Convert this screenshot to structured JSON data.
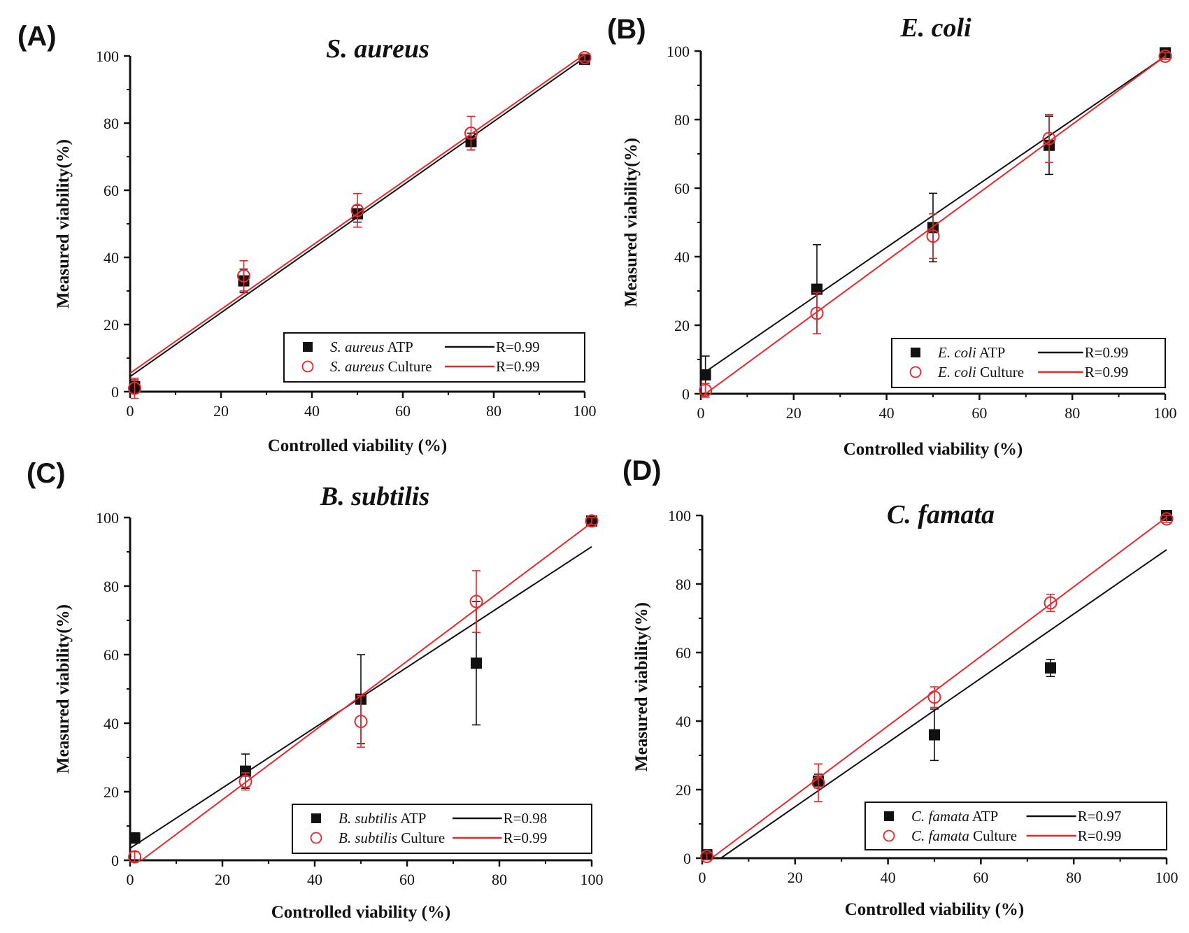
{
  "figure": {
    "colors": {
      "atp": "#111111",
      "culture": "#e8282b",
      "axis": "#111111"
    },
    "legend_style": {
      "atp_marker": "filled-square",
      "culture_marker": "open-circle"
    },
    "chart_data": [
      {
        "type": "scatter",
        "panel_label": "(A)",
        "title": "S. aureus",
        "xlabel": "Controlled viability (%)",
        "ylabel": "Measured viability(%)",
        "xlim": [
          0,
          100
        ],
        "ylim": [
          0,
          100
        ],
        "xticks": [
          0,
          20,
          40,
          60,
          80,
          100
        ],
        "yticks": [
          0,
          20,
          40,
          60,
          80,
          100
        ],
        "grid": false,
        "legend_position": "bottom-right",
        "series": [
          {
            "name": "S. aureus ATP",
            "organism": "S. aureus",
            "method": "ATP",
            "r_label": "R=0.99",
            "marker": "filled-square",
            "x": [
              1,
              25,
              50,
              75,
              100
            ],
            "y": [
              1.5,
              33,
              53,
              74.5,
              99
            ],
            "err": [
              2,
              3.5,
              2.5,
              2.5,
              1.5
            ],
            "fit": {
              "x": [
                0,
                100
              ],
              "y": [
                4.5,
                99.5
              ]
            }
          },
          {
            "name": "S. aureus Culture",
            "organism": "S. aureus",
            "method": "Culture",
            "r_label": "R=0.99",
            "marker": "open-circle",
            "x": [
              1,
              25,
              50,
              75,
              100
            ],
            "y": [
              1,
              34.5,
              54,
              77,
              99.5
            ],
            "err": [
              3,
              4.5,
              5,
              5,
              1
            ],
            "fit": {
              "x": [
                0,
                100
              ],
              "y": [
                5.5,
                100.5
              ]
            }
          }
        ]
      },
      {
        "type": "scatter",
        "panel_label": "(B)",
        "title": "E. coli",
        "xlabel": "Controlled viability (%)",
        "ylabel": "Measured viability(%)",
        "xlim": [
          0,
          100
        ],
        "ylim": [
          0,
          100
        ],
        "xticks": [
          0,
          20,
          40,
          60,
          80,
          100
        ],
        "yticks": [
          0,
          20,
          40,
          60,
          80,
          100
        ],
        "grid": false,
        "legend_position": "bottom-right",
        "series": [
          {
            "name": "E. coli ATP",
            "organism": "E. coli",
            "method": "ATP",
            "r_label": "R=0.99",
            "marker": "filled-square",
            "x": [
              1,
              25,
              50,
              75,
              100
            ],
            "y": [
              5.5,
              30.5,
              48.5,
              72.5,
              99.5
            ],
            "err": [
              5.5,
              13,
              10,
              8.5,
              1
            ],
            "fit": {
              "x": [
                0,
                100
              ],
              "y": [
                5.5,
                98.5
              ]
            }
          },
          {
            "name": "E. coli Culture",
            "organism": "E. coli",
            "method": "Culture",
            "r_label": "R=0.99",
            "marker": "open-circle",
            "x": [
              1,
              25,
              50,
              75,
              100
            ],
            "y": [
              1,
              23.5,
              46,
              74.5,
              98.5
            ],
            "err": [
              2,
              6,
              6.5,
              7,
              1
            ],
            "fit": {
              "x": [
                0,
                100
              ],
              "y": [
                -1,
                98.5
              ]
            }
          }
        ]
      },
      {
        "type": "scatter",
        "panel_label": "(C)",
        "title": "B. subtilis",
        "xlabel": "Controlled viability (%)",
        "ylabel": "Measured viability(%)",
        "xlim": [
          0,
          100
        ],
        "ylim": [
          0,
          100
        ],
        "xticks": [
          0,
          20,
          40,
          60,
          80,
          100
        ],
        "yticks": [
          0,
          20,
          40,
          60,
          80,
          100
        ],
        "grid": false,
        "legend_position": "bottom-right",
        "series": [
          {
            "name": "B. subtilis ATP",
            "organism": "B. subtilis",
            "method": "ATP",
            "r_label": "R=0.98",
            "marker": "filled-square",
            "x": [
              1,
              25,
              50,
              75,
              100
            ],
            "y": [
              6.5,
              26,
              47,
              57.5,
              99
            ],
            "err": [
              1.5,
              5,
              13,
              18,
              1
            ],
            "fit": {
              "x": [
                0,
                100
              ],
              "y": [
                3.5,
                91.5
              ]
            }
          },
          {
            "name": "B. subtilis Culture",
            "organism": "B. subtilis",
            "method": "Culture",
            "r_label": "R=0.99",
            "marker": "open-circle",
            "x": [
              1,
              25,
              50,
              75,
              100
            ],
            "y": [
              1,
              23,
              40.5,
              75.5,
              99
            ],
            "err": [
              1.5,
              2.5,
              7.5,
              9,
              1
            ],
            "fit": {
              "x": [
                2.5,
                100
              ],
              "y": [
                0,
                98.5
              ]
            }
          }
        ]
      },
      {
        "type": "scatter",
        "panel_label": "(D)",
        "title": "C. famata",
        "xlabel": "Controlled viability (%)",
        "ylabel": "Measured viability(%)",
        "xlim": [
          0,
          100
        ],
        "ylim": [
          0,
          100
        ],
        "xticks": [
          0,
          20,
          40,
          60,
          80,
          100
        ],
        "yticks": [
          0,
          20,
          40,
          60,
          80,
          100
        ],
        "grid": false,
        "legend_position": "bottom-right",
        "series": [
          {
            "name": "C. famata ATP",
            "organism": "C. famata",
            "method": "ATP",
            "r_label": "R=0.97",
            "marker": "filled-square",
            "x": [
              1,
              25,
              50,
              75,
              100
            ],
            "y": [
              1,
              22.5,
              36,
              55.5,
              100
            ],
            "err": [
              1,
              2,
              7.5,
              2.5,
              1
            ],
            "fit": {
              "x": [
                4,
                100
              ],
              "y": [
                0,
                90
              ]
            }
          },
          {
            "name": "C. famata Culture",
            "organism": "C. famata",
            "method": "Culture",
            "r_label": "R=0.99",
            "marker": "open-circle",
            "x": [
              1,
              25,
              50,
              75,
              100
            ],
            "y": [
              0.5,
              22,
              47,
              74.5,
              99
            ],
            "err": [
              1,
              5.5,
              3,
              2.5,
              1
            ],
            "fit": {
              "x": [
                2,
                100
              ],
              "y": [
                0,
                99.5
              ]
            }
          }
        ]
      }
    ]
  }
}
